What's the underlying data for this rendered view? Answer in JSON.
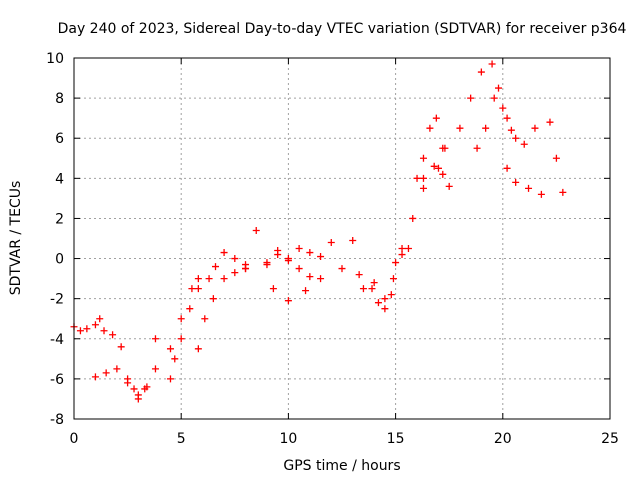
{
  "chart_data": {
    "type": "scatter",
    "title": "Day 240 of 2023, Sidereal Day-to-day VTEC variation (SDTVAR) for receiver p364",
    "xlabel": "GPS time / hours",
    "ylabel": "SDTVAR / TECUs",
    "xlim": [
      0,
      25
    ],
    "ylim": [
      -8,
      10
    ],
    "x_ticks": [
      0,
      5,
      10,
      15,
      20,
      25
    ],
    "y_ticks": [
      -8,
      -6,
      -4,
      -2,
      0,
      2,
      4,
      6,
      8,
      10
    ],
    "grid": true,
    "marker": "+",
    "color": "#ff0000",
    "series": [
      {
        "name": "SDTVAR p364",
        "x": [
          0.0,
          0.3,
          0.6,
          1.0,
          1.2,
          1.4,
          1.8,
          2.2,
          1.0,
          1.5,
          2.0,
          2.5,
          3.0,
          3.4,
          3.8,
          2.5,
          2.8,
          3.0,
          3.3,
          3.8,
          4.5,
          5.0,
          5.5,
          5.8,
          4.5,
          4.7,
          5.0,
          5.4,
          5.8,
          6.3,
          6.6,
          7.0,
          7.5,
          8.0,
          5.8,
          6.1,
          6.5,
          7.0,
          7.5,
          8.0,
          9.0,
          9.5,
          10.0,
          10.5,
          11.0,
          8.0,
          9.0,
          10.0,
          11.0,
          12.0,
          13.0,
          14.0,
          14.5,
          8.5,
          9.5,
          10.5,
          11.5,
          12.5,
          13.3,
          13.9,
          14.5,
          9.3,
          10.0,
          10.8,
          11.5,
          13.5,
          14.2,
          14.8,
          15.0,
          15.3,
          15.6,
          16.0,
          16.3,
          16.6,
          16.9,
          17.2,
          14.9,
          15.3,
          15.8,
          16.3,
          17.0,
          17.3,
          16.3,
          16.8,
          17.2,
          17.5,
          18.0,
          18.5,
          19.0,
          19.5,
          19.8,
          20.2,
          20.6,
          21.0,
          21.5,
          18.8,
          19.2,
          19.6,
          20.0,
          20.4,
          20.2,
          20.6,
          21.2,
          21.8,
          22.2,
          22.5,
          22.8
        ],
        "y": [
          -3.4,
          -3.6,
          -3.5,
          -3.3,
          -3.0,
          -3.6,
          -3.8,
          -4.4,
          -5.9,
          -5.7,
          -5.5,
          -6.2,
          -7.0,
          -6.4,
          -4.0,
          -6.0,
          -6.5,
          -6.8,
          -6.5,
          -5.5,
          -4.5,
          -3.0,
          -1.5,
          -1.0,
          -6.0,
          -5.0,
          -4.0,
          -2.5,
          -1.5,
          -1.0,
          -0.4,
          0.3,
          0.0,
          -0.3,
          -4.5,
          -3.0,
          -2.0,
          -1.0,
          -0.7,
          -0.5,
          -0.2,
          0.4,
          0.0,
          -0.5,
          -0.9,
          -0.5,
          -0.3,
          -0.1,
          0.3,
          0.8,
          0.9,
          -1.2,
          -2.0,
          1.4,
          0.2,
          0.5,
          0.1,
          -0.5,
          -0.8,
          -1.5,
          -2.5,
          -1.5,
          -2.1,
          -1.6,
          -1.0,
          -1.5,
          -2.2,
          -1.8,
          -0.2,
          0.2,
          0.5,
          4.0,
          5.0,
          6.5,
          7.0,
          5.5,
          -1.0,
          0.5,
          2.0,
          3.5,
          4.5,
          5.5,
          4.0,
          4.6,
          4.2,
          3.6,
          6.5,
          8.0,
          9.3,
          9.7,
          8.5,
          7.0,
          6.0,
          5.7,
          6.5,
          5.5,
          6.5,
          8.0,
          7.5,
          6.4,
          4.5,
          3.8,
          3.5,
          3.2,
          6.8,
          5.0,
          3.3
        ]
      }
    ]
  }
}
